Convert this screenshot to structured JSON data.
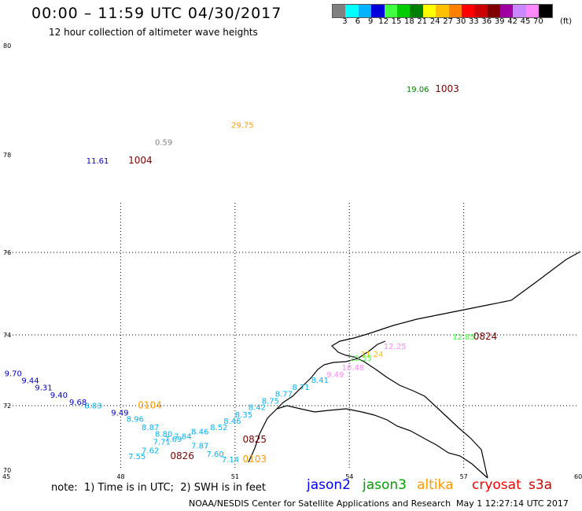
{
  "header": {
    "title": "00:00 – 11:59 UTC 04/30/2017",
    "subtitle": "12 hour collection of altimeter wave heights"
  },
  "scale": {
    "colors": [
      "#808080",
      "#00ffff",
      "#00b3ff",
      "#0000dd",
      "#40ff40",
      "#00cc00",
      "#008000",
      "#ffff00",
      "#ffc000",
      "#ff8000",
      "#ff0000",
      "#cc0000",
      "#800000",
      "#a000a0",
      "#cc88ff",
      "#ff88ff",
      "#000000"
    ],
    "labels": [
      "3",
      "6",
      "9",
      "12",
      "15",
      "18",
      "21",
      "24",
      "27",
      "30",
      "33",
      "36",
      "39",
      "42",
      "45",
      "70"
    ],
    "unit": "(ft)"
  },
  "axes": {
    "lat_ticks": [
      {
        "v": 80,
        "label": "80"
      },
      {
        "v": 78,
        "label": "78"
      },
      {
        "v": 76,
        "label": "76"
      },
      {
        "v": 74,
        "label": "74"
      },
      {
        "v": 72,
        "label": "72"
      },
      {
        "v": 70,
        "label": "70"
      }
    ],
    "lon_ticks": [
      {
        "v": 45,
        "label": "45"
      },
      {
        "v": 48,
        "label": "48"
      },
      {
        "v": 51,
        "label": "51"
      },
      {
        "v": 54,
        "label": "54"
      },
      {
        "v": 57,
        "label": "57"
      },
      {
        "v": 60,
        "label": "60"
      }
    ]
  },
  "observations": [
    {
      "lon": 55.5,
      "lat": 79.15,
      "text": "19.06",
      "color": "#008000"
    },
    {
      "lon": 50.9,
      "lat": 78.5,
      "text": "29.75",
      "color": "#ff9900"
    },
    {
      "lon": 48.9,
      "lat": 78.18,
      "text": "0.59",
      "color": "#808080"
    },
    {
      "lon": 47.1,
      "lat": 77.82,
      "text": "11.61",
      "color": "#0000cc"
    },
    {
      "lon": 56.7,
      "lat": 73.87,
      "text": "12.85",
      "color": "#40ff40"
    },
    {
      "lon": 54.9,
      "lat": 73.6,
      "text": "12.25",
      "color": "#ff88ff"
    },
    {
      "lon": 54.3,
      "lat": 73.38,
      "text": "11.24",
      "color": "#ffc000"
    },
    {
      "lon": 54.0,
      "lat": 73.27,
      "text": "10.55",
      "color": "#40ff40"
    },
    {
      "lon": 53.8,
      "lat": 73.0,
      "text": "10.48",
      "color": "#ff88ff"
    },
    {
      "lon": 53.4,
      "lat": 72.8,
      "text": "9.49",
      "color": "#ff88ff"
    },
    {
      "lon": 53.0,
      "lat": 72.65,
      "text": "8.41",
      "color": "#00b3ff"
    },
    {
      "lon": 52.5,
      "lat": 72.45,
      "text": "8.71",
      "color": "#00b3ff"
    },
    {
      "lon": 52.05,
      "lat": 72.26,
      "text": "8.77",
      "color": "#00b3ff"
    },
    {
      "lon": 51.7,
      "lat": 72.06,
      "text": "8.75",
      "color": "#00b3ff"
    },
    {
      "lon": 51.35,
      "lat": 71.86,
      "text": "8.42",
      "color": "#00b3ff"
    },
    {
      "lon": 51.0,
      "lat": 71.64,
      "text": "8.35",
      "color": "#00b3ff"
    },
    {
      "lon": 50.7,
      "lat": 71.44,
      "text": "8.46",
      "color": "#00b3ff"
    },
    {
      "lon": 50.35,
      "lat": 71.25,
      "text": "8.52",
      "color": "#00b3ff"
    },
    {
      "lon": 49.85,
      "lat": 71.11,
      "text": "8.46",
      "color": "#00b3ff"
    },
    {
      "lon": 49.4,
      "lat": 70.96,
      "text": "7.84",
      "color": "#00b3ff"
    },
    {
      "lon": 49.15,
      "lat": 70.88,
      "text": "7.69",
      "color": "#00b3ff"
    },
    {
      "lon": 48.85,
      "lat": 70.79,
      "text": "7.71",
      "color": "#00b3ff"
    },
    {
      "lon": 49.85,
      "lat": 70.67,
      "text": "7.87",
      "color": "#00b3ff"
    },
    {
      "lon": 50.25,
      "lat": 70.42,
      "text": "7.60",
      "color": "#00b3ff"
    },
    {
      "lon": 50.65,
      "lat": 70.25,
      "text": "7.14",
      "color": "#00b3ff"
    },
    {
      "lon": 48.55,
      "lat": 70.52,
      "text": "7.62",
      "color": "#00b3ff"
    },
    {
      "lon": 48.2,
      "lat": 70.34,
      "text": "7.55",
      "color": "#00b3ff"
    },
    {
      "lon": 48.9,
      "lat": 71.04,
      "text": "8.80",
      "color": "#00b3ff"
    },
    {
      "lon": 48.55,
      "lat": 71.25,
      "text": "8.87",
      "color": "#00b3ff"
    },
    {
      "lon": 48.15,
      "lat": 71.5,
      "text": "8.96",
      "color": "#00b3ff"
    },
    {
      "lon": 47.75,
      "lat": 71.7,
      "text": "9.49",
      "color": "#0000cc"
    },
    {
      "lon": 47.05,
      "lat": 71.92,
      "text": "8.83",
      "color": "#00b3ff"
    },
    {
      "lon": 46.65,
      "lat": 72.02,
      "text": "9.68",
      "color": "#0000cc"
    },
    {
      "lon": 46.15,
      "lat": 72.22,
      "text": "9.40",
      "color": "#0000cc"
    },
    {
      "lon": 45.75,
      "lat": 72.43,
      "text": "9.31",
      "color": "#0000cc"
    },
    {
      "lon": 45.4,
      "lat": 72.63,
      "text": "9.44",
      "color": "#0000cc"
    },
    {
      "lon": 44.95,
      "lat": 72.83,
      "text": "9.70",
      "color": "#0000cc"
    }
  ],
  "pass_ids": [
    {
      "lon": 56.25,
      "lat": 79.15,
      "text": "1003",
      "color": "#800000"
    },
    {
      "lon": 48.2,
      "lat": 77.82,
      "text": "1004",
      "color": "#800000"
    },
    {
      "lon": 57.25,
      "lat": 73.87,
      "text": "0824",
      "color": "#800000"
    },
    {
      "lon": 48.45,
      "lat": 71.92,
      "text": "0104",
      "color": "#ff9900"
    },
    {
      "lon": 51.2,
      "lat": 70.85,
      "text": "0825",
      "color": "#800000"
    },
    {
      "lon": 49.3,
      "lat": 70.34,
      "text": "0826",
      "color": "#800000"
    },
    {
      "lon": 51.2,
      "lat": 70.25,
      "text": "0103",
      "color": "#ff9900"
    }
  ],
  "footer": {
    "note": "note:  1) Time is in UTC;  2) SWH is in feet",
    "satellites": [
      {
        "name": "jason2",
        "color": "#0000ff"
      },
      {
        "name": "jason3",
        "color": "#00a000"
      },
      {
        "name": "altika",
        "color": "#ff9900"
      },
      {
        "name": "cryosat",
        "color": "#ff0000"
      },
      {
        "name": "s3a",
        "color": "#cc0000"
      }
    ],
    "credit": "NOAA/NESDIS Center for Satellite Applications and Research",
    "timestamp": "May  1 12:27:14 UTC 2017"
  }
}
